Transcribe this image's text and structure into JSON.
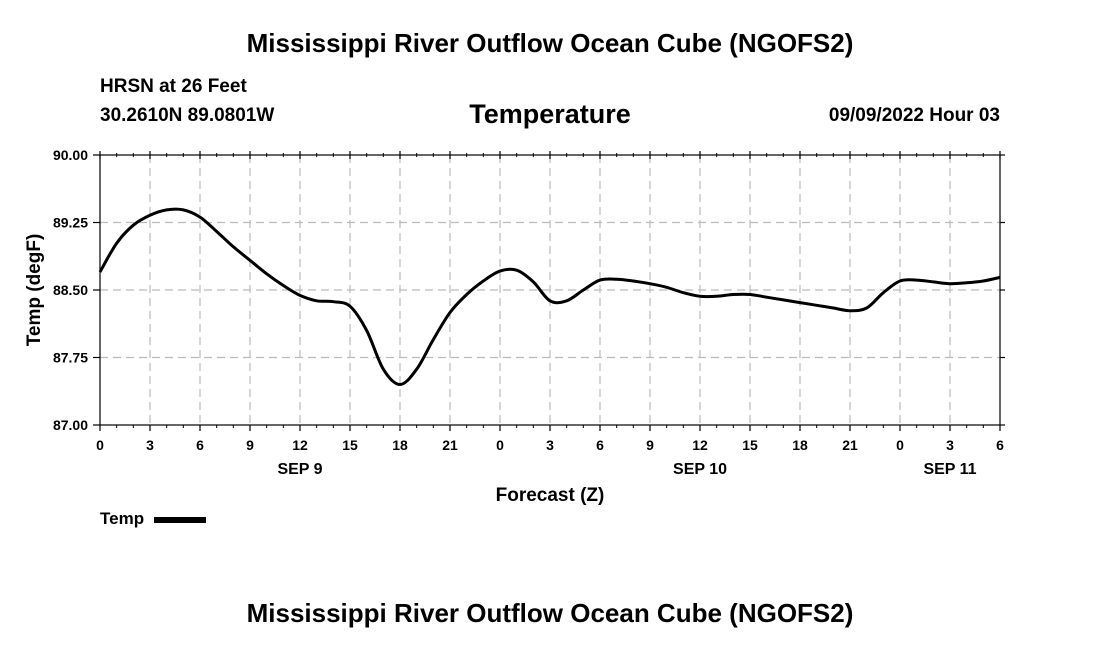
{
  "header": {
    "title": "Mississippi River Outflow Ocean Cube (NGOFS2)",
    "station": "HRSN at 26 Feet",
    "coords": "30.2610N  89.0801W",
    "variable": "Temperature",
    "datetime": "09/09/2022 Hour 03"
  },
  "footer": {
    "title": "Mississippi River Outflow Ocean Cube (NGOFS2)"
  },
  "legend": {
    "label": "Temp",
    "color": "#000000"
  },
  "chart_data": {
    "type": "line",
    "title": "Temperature",
    "xlabel": "Forecast (Z)",
    "ylabel": "Temp (degF)",
    "xlim": [
      0,
      54
    ],
    "ylim": [
      87.0,
      90.0
    ],
    "grid": true,
    "legend_position": "bottom-left",
    "y_ticks": [
      {
        "value": 87.0,
        "label": "87.00"
      },
      {
        "value": 87.75,
        "label": "87.75"
      },
      {
        "value": 88.5,
        "label": "88.50"
      },
      {
        "value": 89.25,
        "label": "89.25"
      },
      {
        "value": 90.0,
        "label": "90.00"
      }
    ],
    "x_ticks": [
      {
        "value": 0,
        "label": "0"
      },
      {
        "value": 3,
        "label": "3"
      },
      {
        "value": 6,
        "label": "6"
      },
      {
        "value": 9,
        "label": "9"
      },
      {
        "value": 12,
        "label": "12"
      },
      {
        "value": 15,
        "label": "15"
      },
      {
        "value": 18,
        "label": "18"
      },
      {
        "value": 21,
        "label": "21"
      },
      {
        "value": 24,
        "label": "0"
      },
      {
        "value": 27,
        "label": "3"
      },
      {
        "value": 30,
        "label": "6"
      },
      {
        "value": 33,
        "label": "9"
      },
      {
        "value": 36,
        "label": "12"
      },
      {
        "value": 39,
        "label": "15"
      },
      {
        "value": 42,
        "label": "18"
      },
      {
        "value": 45,
        "label": "21"
      },
      {
        "value": 48,
        "label": "0"
      },
      {
        "value": 51,
        "label": "3"
      },
      {
        "value": 54,
        "label": "6"
      }
    ],
    "day_labels": [
      {
        "value": 12,
        "label": "SEP 9"
      },
      {
        "value": 36,
        "label": "SEP 10"
      },
      {
        "value": 51,
        "label": "SEP 11"
      }
    ],
    "series": [
      {
        "name": "Temp",
        "x": [
          0,
          1,
          2,
          3,
          4,
          5,
          6,
          7,
          8,
          9,
          10,
          11,
          12,
          13,
          14,
          15,
          16,
          17,
          18,
          19,
          20,
          21,
          22,
          23,
          24,
          25,
          26,
          27,
          28,
          29,
          30,
          31,
          32,
          33,
          34,
          35,
          36,
          37,
          38,
          39,
          40,
          41,
          42,
          43,
          44,
          45,
          46,
          47,
          48,
          49,
          50,
          51,
          52,
          53,
          54
        ],
        "values": [
          88.7,
          89.02,
          89.22,
          89.33,
          89.39,
          89.39,
          89.31,
          89.15,
          88.98,
          88.83,
          88.68,
          88.55,
          88.44,
          88.38,
          88.37,
          88.32,
          88.05,
          87.62,
          87.45,
          87.62,
          87.95,
          88.25,
          88.45,
          88.6,
          88.71,
          88.72,
          88.59,
          88.38,
          88.38,
          88.5,
          88.61,
          88.62,
          88.6,
          88.57,
          88.53,
          88.47,
          88.43,
          88.43,
          88.45,
          88.45,
          88.42,
          88.39,
          88.36,
          88.33,
          88.3,
          88.27,
          88.3,
          88.47,
          88.6,
          88.61,
          88.59,
          88.57,
          88.58,
          88.6,
          88.64
        ]
      }
    ]
  }
}
